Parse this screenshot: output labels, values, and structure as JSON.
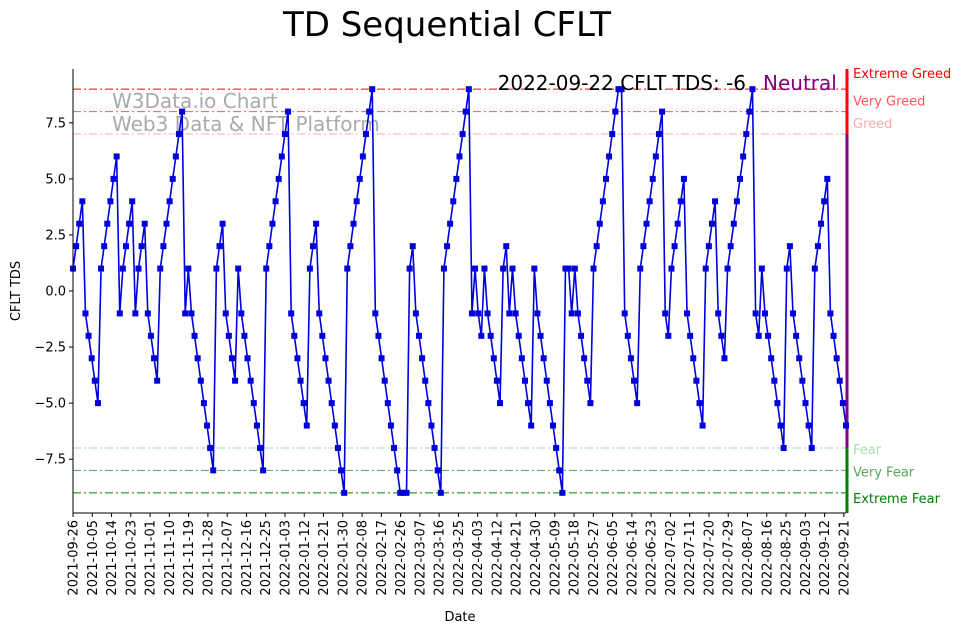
{
  "chart_data": {
    "type": "line",
    "title": "TD Sequential CFLT",
    "xlabel": "Date",
    "ylabel": "CFLT TDS",
    "ylim": [
      -9.9,
      9.9
    ],
    "yticks": [
      -7.5,
      -5.0,
      -2.5,
      0.0,
      2.5,
      5.0,
      7.5
    ],
    "ytick_labels": [
      "−7.5",
      "−5.0",
      "−2.5",
      "0.0",
      "2.5",
      "5.0",
      "7.5"
    ],
    "x_tick_labels": [
      "2021-09-26",
      "2021-10-05",
      "2021-10-14",
      "2021-10-23",
      "2021-11-01",
      "2021-11-10",
      "2021-11-19",
      "2021-11-28",
      "2021-12-07",
      "2021-12-16",
      "2021-12-25",
      "2022-01-03",
      "2022-01-12",
      "2022-01-21",
      "2022-01-30",
      "2022-02-08",
      "2022-02-17",
      "2022-02-26",
      "2022-03-07",
      "2022-03-16",
      "2022-03-25",
      "2022-04-03",
      "2022-04-12",
      "2022-04-21",
      "2022-04-30",
      "2022-05-09",
      "2022-05-18",
      "2022-05-27",
      "2022-06-05",
      "2022-06-14",
      "2022-06-23",
      "2022-07-02",
      "2022-07-11",
      "2022-07-20",
      "2022-07-29",
      "2022-08-07",
      "2022-08-16",
      "2022-08-25",
      "2022-09-03",
      "2022-09-12",
      "2022-09-21"
    ],
    "x_start_date": "2021-09-26",
    "x_end_date": "2022-09-22",
    "series": [
      {
        "name": "CFLT TDS",
        "color": "#0000dd",
        "marker": "square",
        "values": [
          1,
          2,
          3,
          4,
          -1,
          -2,
          -3,
          -4,
          -5,
          1,
          2,
          3,
          4,
          5,
          6,
          -1,
          1,
          2,
          3,
          4,
          -1,
          1,
          2,
          3,
          -1,
          -2,
          -3,
          -4,
          1,
          2,
          3,
          4,
          5,
          6,
          7,
          8,
          -1,
          1,
          -1,
          -2,
          -3,
          -4,
          -5,
          -6,
          -7,
          -8,
          1,
          2,
          3,
          -1,
          -2,
          -3,
          -4,
          1,
          -1,
          -2,
          -3,
          -4,
          -5,
          -6,
          -7,
          -8,
          1,
          2,
          3,
          4,
          5,
          6,
          7,
          8,
          -1,
          -2,
          -3,
          -4,
          -5,
          -6,
          1,
          2,
          3,
          -1,
          -2,
          -3,
          -4,
          -5,
          -6,
          -7,
          -8,
          -9,
          1,
          2,
          3,
          4,
          5,
          6,
          7,
          8,
          9,
          -1,
          -2,
          -3,
          -4,
          -5,
          -6,
          -7,
          -8,
          -9,
          -9,
          -9,
          1,
          2,
          -1,
          -2,
          -3,
          -4,
          -5,
          -6,
          -7,
          -8,
          -9,
          1,
          2,
          3,
          4,
          5,
          6,
          7,
          8,
          9,
          -1,
          1,
          -1,
          -2,
          1,
          -1,
          -2,
          -3,
          -4,
          -5,
          1,
          2,
          -1,
          1,
          -1,
          -2,
          -3,
          -4,
          -5,
          -6,
          1,
          -1,
          -2,
          -3,
          -4,
          -5,
          -6,
          -7,
          -8,
          -9,
          1,
          1,
          -1,
          1,
          -1,
          -2,
          -3,
          -4,
          -5,
          1,
          2,
          3,
          4,
          5,
          6,
          7,
          8,
          9,
          9,
          -1,
          -2,
          -3,
          -4,
          -5,
          1,
          2,
          3,
          4,
          5,
          6,
          7,
          8,
          -1,
          -2,
          1,
          2,
          3,
          4,
          5,
          -1,
          -2,
          -3,
          -4,
          -5,
          -6,
          1,
          2,
          3,
          4,
          -1,
          -2,
          -3,
          1,
          2,
          3,
          4,
          5,
          6,
          7,
          8,
          9,
          -1,
          -2,
          1,
          -1,
          -2,
          -3,
          -4,
          -5,
          -6,
          -7,
          1,
          2,
          -1,
          -2,
          -3,
          -4,
          -5,
          -6,
          -7,
          1,
          2,
          3,
          4,
          5,
          -1,
          -2,
          -3,
          -4,
          -5,
          -6
        ]
      }
    ],
    "reference_lines": [
      {
        "name": "Extreme Greed",
        "value": 9,
        "color": "#ff0000"
      },
      {
        "name": "Very Greed",
        "value": 8,
        "color": "#ff5555"
      },
      {
        "name": "Greed",
        "value": 7,
        "color": "#ffaaaa"
      },
      {
        "name": "Fear",
        "value": -7,
        "color": "#aaddaa"
      },
      {
        "name": "Very Fear",
        "value": -8,
        "color": "#55aa55"
      },
      {
        "name": "Extreme Fear",
        "value": -9,
        "color": "#008000"
      }
    ],
    "right_bar": {
      "segments": [
        {
          "from": 7,
          "to": 9.9,
          "color": "#ff0000"
        },
        {
          "from": -7,
          "to": 7,
          "color": "#800080"
        },
        {
          "from": -9.9,
          "to": -7,
          "color": "#008000"
        }
      ]
    },
    "status_label": "2022-09-22 CFLT TDS: -6",
    "status_sentiment": "Neutral",
    "status_sentiment_color": "#800080",
    "watermark_line1": "W3Data.io Chart",
    "watermark_line2": "Web3 Data & NFT Platform",
    "grid": false
  }
}
